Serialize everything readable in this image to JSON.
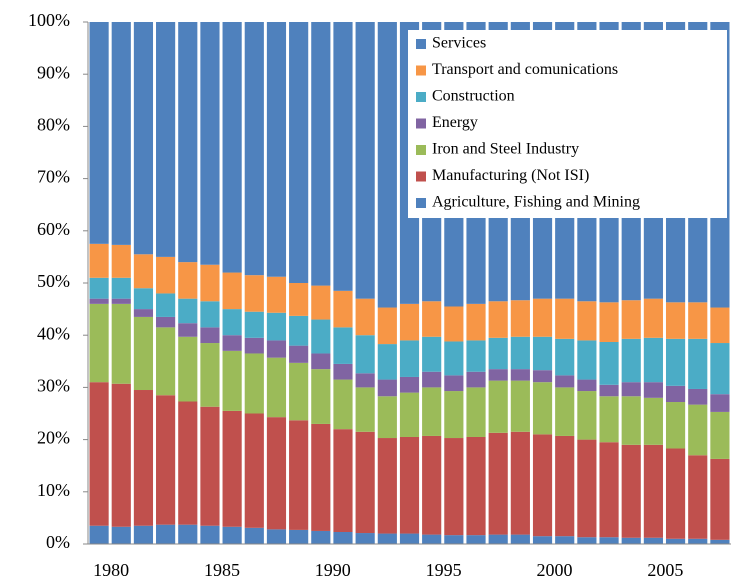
{
  "chart_data": {
    "type": "stacked_bar",
    "categories": [
      "1980",
      null,
      null,
      null,
      null,
      "1985",
      null,
      null,
      null,
      null,
      "1990",
      null,
      null,
      null,
      null,
      "1995",
      null,
      null,
      null,
      null,
      "2000",
      null,
      null,
      null,
      null,
      "2005",
      null,
      null,
      null
    ],
    "series": [
      {
        "name": "Agriculture, Fishing and  Mining",
        "color": "#4f81bd",
        "values": [
          3.5,
          3.3,
          3.5,
          3.7,
          3.7,
          3.5,
          3.3,
          3.1,
          2.8,
          2.7,
          2.5,
          2.3,
          2.1,
          2,
          2,
          1.8,
          1.7,
          1.7,
          1.8,
          1.8,
          1.5,
          1.5,
          1.3,
          1.3,
          1.2,
          1.2,
          1.0,
          1.0,
          0.8
        ]
      },
      {
        "name": "Manufacturing (Not ISI)",
        "color": "#c0504d",
        "values": [
          27.5,
          27.4,
          26,
          24.8,
          23.6,
          22.8,
          22.2,
          21.9,
          21.5,
          21,
          20.5,
          19.7,
          19.4,
          18.3,
          18.5,
          18.9,
          18.6,
          18.8,
          19.5,
          19.7,
          19.5,
          19.2,
          18.7,
          18.2,
          17.8,
          17.8,
          17.3,
          16,
          15.5
        ]
      },
      {
        "name": "Iron and Steel Industry",
        "color": "#9bbb59",
        "values": [
          15,
          15.3,
          14,
          13,
          12.4,
          12.2,
          11.5,
          11.5,
          11.4,
          11,
          10.5,
          9.5,
          8.5,
          8,
          8.5,
          9.3,
          9,
          9.5,
          10,
          9.8,
          10,
          9.3,
          9.3,
          8.8,
          9.3,
          9,
          8.9,
          9.7,
          9
        ]
      },
      {
        "name": "Energy",
        "color": "#8064a2",
        "values": [
          1,
          1,
          1.5,
          2,
          2.6,
          3,
          3,
          3,
          3.3,
          3.3,
          3,
          3,
          2.7,
          3.2,
          3,
          3,
          3,
          3,
          2.2,
          2.2,
          2.3,
          2.3,
          2.2,
          2.2,
          2.7,
          3,
          3.1,
          3,
          3.4
        ]
      },
      {
        "name": "Construction",
        "color": "#4bacc6",
        "values": [
          4,
          4,
          4,
          4.5,
          4.7,
          5,
          5,
          5,
          5.3,
          5.7,
          6.5,
          7,
          7.3,
          6.8,
          7,
          6.7,
          6.5,
          6,
          6,
          6.2,
          6.4,
          7,
          7.5,
          8.2,
          8.3,
          8.5,
          9,
          9.6,
          9.8
        ]
      },
      {
        "name": "Transport and comunications",
        "color": "#f79646",
        "values": [
          6.5,
          6.3,
          6.5,
          7,
          7,
          7,
          7,
          7,
          6.9,
          6.3,
          6.5,
          7,
          7,
          7,
          7,
          6.8,
          6.7,
          7,
          7,
          7,
          7.3,
          7.7,
          7.5,
          7.6,
          7.4,
          7.5,
          7,
          7,
          6.8
        ]
      },
      {
        "name": "Services",
        "color": "#4f81bd",
        "values": [
          42.5,
          42.7,
          44.5,
          45,
          46,
          46.5,
          48,
          48.5,
          48.8,
          50,
          50.5,
          51.5,
          53,
          54.7,
          54,
          53.5,
          54.5,
          54,
          53.5,
          53.3,
          53,
          53,
          53.5,
          53.7,
          53.3,
          53,
          53.7,
          53.7,
          54.7
        ]
      }
    ],
    "ylim": [
      0,
      100
    ],
    "yticks": [
      {
        "value": 0,
        "label": "0%"
      },
      {
        "value": 10,
        "label": "10%"
      },
      {
        "value": 20,
        "label": "20%"
      },
      {
        "value": 30,
        "label": "30%"
      },
      {
        "value": 40,
        "label": "40%"
      },
      {
        "value": 50,
        "label": "50%"
      },
      {
        "value": 60,
        "label": "60%"
      },
      {
        "value": 70,
        "label": "70%"
      },
      {
        "value": 80,
        "label": "80%"
      },
      {
        "value": 90,
        "label": "90%"
      },
      {
        "value": 100,
        "label": "100%"
      }
    ],
    "legend": "upper right"
  }
}
